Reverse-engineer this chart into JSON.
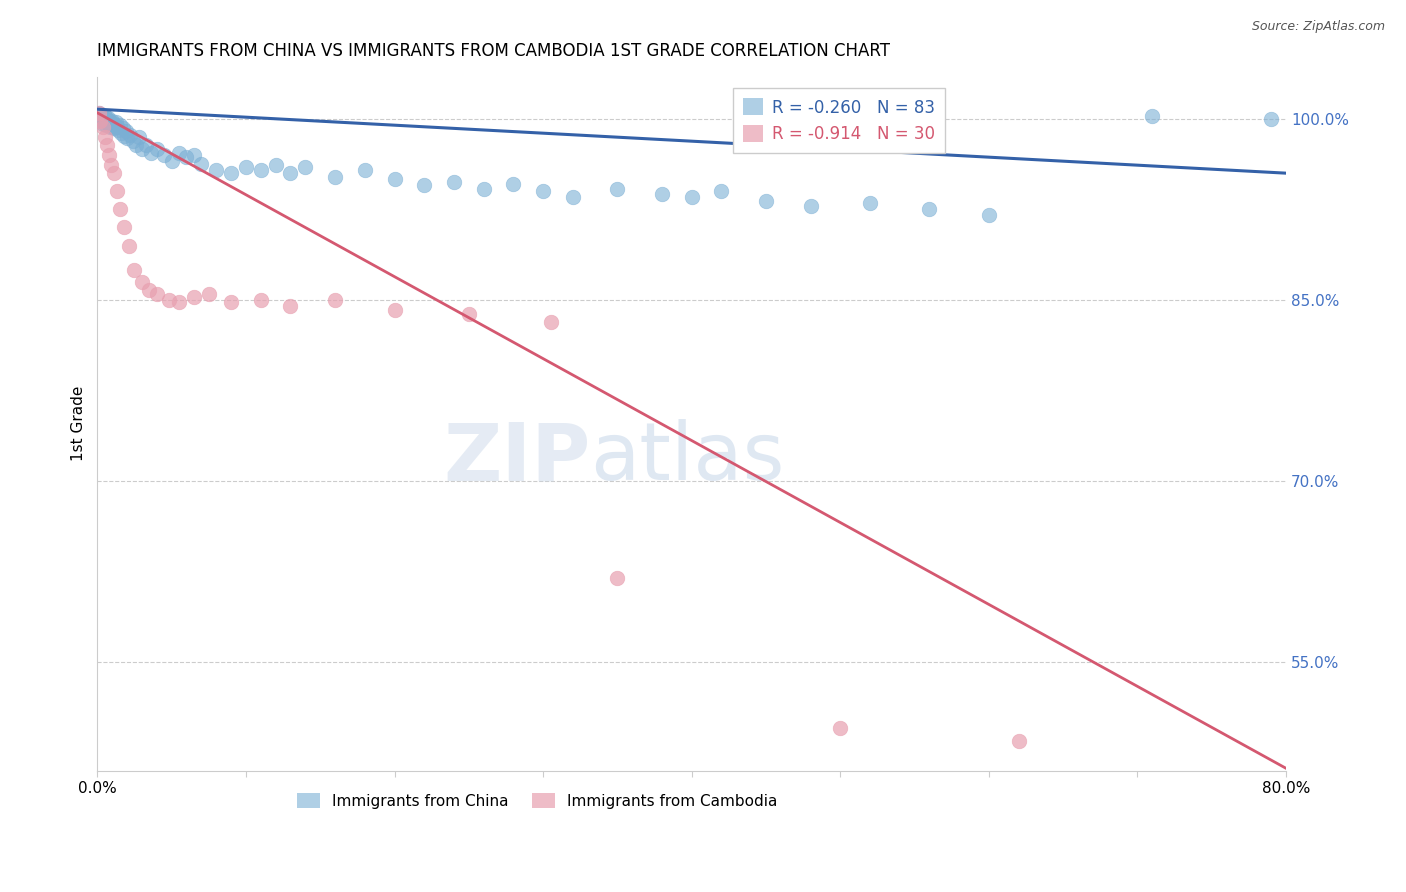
{
  "title": "IMMIGRANTS FROM CHINA VS IMMIGRANTS FROM CAMBODIA 1ST GRADE CORRELATION CHART",
  "source": "Source: ZipAtlas.com",
  "ylabel": "1st Grade",
  "right_ytick_labels": [
    "100.0%",
    "85.0%",
    "70.0%",
    "55.0%"
  ],
  "right_yticks": [
    100.0,
    85.0,
    70.0,
    55.0
  ],
  "china_R": -0.26,
  "china_N": 83,
  "cambodia_R": -0.914,
  "cambodia_N": 30,
  "blue_color": "#7bafd4",
  "pink_color": "#e8a0b0",
  "blue_line_color": "#3461a8",
  "pink_line_color": "#d45870",
  "legend_china": "Immigrants from China",
  "legend_cambodia": "Immigrants from Cambodia",
  "watermark_zip": "ZIP",
  "watermark_atlas": "atlas",
  "xmin": 0.0,
  "xmax": 80.0,
  "ymin": 46.0,
  "ymax": 103.5,
  "china_line_x0": 0.0,
  "china_line_y0": 100.8,
  "china_line_x1": 80.0,
  "china_line_y1": 95.5,
  "cambodia_line_x0": 0.0,
  "cambodia_line_y0": 100.5,
  "cambodia_line_x1": 80.0,
  "cambodia_line_y1": 46.2,
  "china_scatter_x": [
    0.1,
    0.15,
    0.2,
    0.25,
    0.3,
    0.35,
    0.4,
    0.45,
    0.5,
    0.55,
    0.6,
    0.65,
    0.7,
    0.75,
    0.8,
    0.85,
    0.9,
    0.95,
    1.0,
    1.05,
    1.1,
    1.15,
    1.2,
    1.25,
    1.3,
    1.4,
    1.5,
    1.6,
    1.7,
    1.8,
    1.9,
    2.0,
    2.2,
    2.4,
    2.6,
    2.8,
    3.0,
    3.3,
    3.6,
    4.0,
    4.5,
    5.0,
    5.5,
    6.0,
    6.5,
    7.0,
    8.0,
    9.0,
    10.0,
    11.0,
    12.0,
    13.0,
    14.0,
    16.0,
    18.0,
    20.0,
    22.0,
    24.0,
    26.0,
    28.0,
    30.0,
    32.0,
    35.0,
    38.0,
    40.0,
    42.0,
    45.0,
    48.0,
    52.0,
    56.0,
    60.0,
    71.0,
    79.0
  ],
  "china_scatter_y": [
    100.5,
    100.2,
    100.0,
    99.8,
    100.3,
    99.6,
    100.1,
    99.9,
    100.2,
    99.7,
    99.5,
    100.0,
    99.8,
    100.1,
    99.6,
    99.3,
    99.7,
    99.4,
    99.8,
    99.5,
    99.2,
    99.6,
    99.3,
    99.7,
    99.4,
    99.1,
    99.5,
    98.8,
    99.2,
    98.6,
    99.0,
    98.4,
    98.7,
    98.2,
    97.8,
    98.5,
    97.5,
    97.8,
    97.2,
    97.5,
    97.0,
    96.5,
    97.2,
    96.8,
    97.0,
    96.3,
    95.8,
    95.5,
    96.0,
    95.8,
    96.2,
    95.5,
    96.0,
    95.2,
    95.8,
    95.0,
    94.5,
    94.8,
    94.2,
    94.6,
    94.0,
    93.5,
    94.2,
    93.8,
    93.5,
    94.0,
    93.2,
    92.8,
    93.0,
    92.5,
    92.0,
    100.2,
    100.0
  ],
  "cambodia_scatter_x": [
    0.1,
    0.2,
    0.35,
    0.5,
    0.65,
    0.8,
    0.95,
    1.1,
    1.3,
    1.5,
    1.8,
    2.1,
    2.5,
    3.0,
    3.5,
    4.0,
    4.8,
    5.5,
    6.5,
    7.5,
    9.0,
    11.0,
    13.0,
    16.0,
    20.0,
    25.0,
    30.5,
    35.0,
    50.0,
    62.0
  ],
  "cambodia_scatter_y": [
    100.5,
    99.8,
    99.3,
    98.5,
    97.8,
    97.0,
    96.2,
    95.5,
    94.0,
    92.5,
    91.0,
    89.5,
    87.5,
    86.5,
    85.8,
    85.5,
    85.0,
    84.8,
    85.2,
    85.5,
    84.8,
    85.0,
    84.5,
    85.0,
    84.2,
    83.8,
    83.2,
    62.0,
    49.5,
    48.5
  ]
}
